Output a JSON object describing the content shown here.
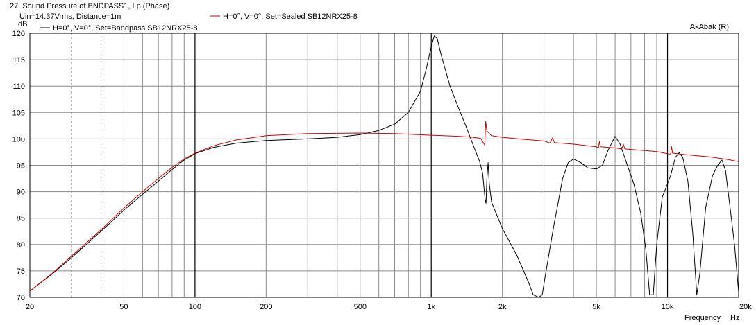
{
  "chart_data": {
    "type": "line",
    "title": "27. Sound Pressure of BNDPASS1, Lp (Phase)",
    "subtitle": "Uin=14.37Vrms, Distance=1m",
    "watermark": "AkAbak (R)",
    "ylabel": "dB",
    "xlabel": "Frequency",
    "xunit": "Hz",
    "xscale": "log",
    "xlim": [
      20,
      20000
    ],
    "ylim": [
      70,
      120
    ],
    "grid": true,
    "legend_position": "top-left",
    "x_ticks": [
      "20",
      "50",
      "100",
      "200",
      "500",
      "1k",
      "2k",
      "5k",
      "10k",
      "20k"
    ],
    "x_tick_values": [
      20,
      50,
      100,
      200,
      500,
      1000,
      2000,
      5000,
      10000,
      20000
    ],
    "y_ticks": [
      "70",
      "75",
      "80",
      "85",
      "90",
      "95",
      "100",
      "105",
      "110",
      "115",
      "120"
    ],
    "y_tick_values": [
      70,
      75,
      80,
      85,
      90,
      95,
      100,
      105,
      110,
      115,
      120
    ],
    "series": [
      {
        "name": "H=0°, V=0°, Set=Bandpass SB12NRX25-8",
        "color": "#000000",
        "points": [
          [
            20,
            71.2
          ],
          [
            25,
            74.5
          ],
          [
            30,
            77.5
          ],
          [
            40,
            82.5
          ],
          [
            50,
            86.5
          ],
          [
            60,
            89.5
          ],
          [
            70,
            92.0
          ],
          [
            80,
            94.2
          ],
          [
            90,
            96.0
          ],
          [
            100,
            97.2
          ],
          [
            120,
            98.4
          ],
          [
            150,
            99.2
          ],
          [
            200,
            99.7
          ],
          [
            300,
            100.0
          ],
          [
            400,
            100.3
          ],
          [
            500,
            100.8
          ],
          [
            600,
            101.6
          ],
          [
            700,
            102.8
          ],
          [
            800,
            105.0
          ],
          [
            900,
            109.0
          ],
          [
            950,
            113.0
          ],
          [
            1000,
            117.5
          ],
          [
            1030,
            119.5
          ],
          [
            1060,
            119.0
          ],
          [
            1100,
            116.0
          ],
          [
            1200,
            110.0
          ],
          [
            1300,
            106.0
          ],
          [
            1400,
            102.5
          ],
          [
            1500,
            99.0
          ],
          [
            1600,
            95.8
          ],
          [
            1650,
            93.5
          ],
          [
            1690,
            88.5
          ],
          [
            1705,
            87.8
          ],
          [
            1720,
            92.5
          ],
          [
            1740,
            95.5
          ],
          [
            1760,
            91.5
          ],
          [
            1800,
            88.0
          ],
          [
            2000,
            83.0
          ],
          [
            2300,
            78.0
          ],
          [
            2600,
            72.5
          ],
          [
            2700,
            70.5
          ],
          [
            2850,
            70.0
          ],
          [
            2950,
            70.5
          ],
          [
            3050,
            74.5
          ],
          [
            3300,
            83.5
          ],
          [
            3600,
            92.5
          ],
          [
            3800,
            95.5
          ],
          [
            4000,
            96.2
          ],
          [
            4300,
            95.5
          ],
          [
            4600,
            94.5
          ],
          [
            5000,
            94.3
          ],
          [
            5300,
            95.0
          ],
          [
            5600,
            97.8
          ],
          [
            6000,
            100.5
          ],
          [
            6300,
            99.0
          ],
          [
            6700,
            95.5
          ],
          [
            7200,
            91.5
          ],
          [
            7700,
            86.0
          ],
          [
            8100,
            79.0
          ],
          [
            8400,
            70.5
          ],
          [
            8700,
            70.5
          ],
          [
            9000,
            80.0
          ],
          [
            9500,
            89.0
          ],
          [
            9900,
            91.0
          ],
          [
            10300,
            93.0
          ],
          [
            10800,
            96.5
          ],
          [
            11200,
            97.4
          ],
          [
            11600,
            96.5
          ],
          [
            12200,
            92.0
          ],
          [
            12800,
            82.0
          ],
          [
            13300,
            70.5
          ],
          [
            13700,
            74.5
          ],
          [
            14500,
            87.0
          ],
          [
            15500,
            93.0
          ],
          [
            16300,
            95.0
          ],
          [
            17000,
            96.0
          ],
          [
            17600,
            94.0
          ],
          [
            18400,
            87.0
          ],
          [
            19200,
            80.0
          ],
          [
            20000,
            71.0
          ]
        ]
      },
      {
        "name": "H=0°, V=0°, Set=Sealed SB12NRX25-8",
        "color": "#cc0000",
        "points": [
          [
            20,
            71.2
          ],
          [
            25,
            74.6
          ],
          [
            30,
            77.8
          ],
          [
            40,
            82.8
          ],
          [
            50,
            86.9
          ],
          [
            60,
            90.0
          ],
          [
            70,
            92.5
          ],
          [
            80,
            94.6
          ],
          [
            90,
            96.2
          ],
          [
            100,
            97.3
          ],
          [
            120,
            98.7
          ],
          [
            150,
            99.8
          ],
          [
            200,
            100.6
          ],
          [
            300,
            101.0
          ],
          [
            500,
            101.1
          ],
          [
            700,
            101.0
          ],
          [
            1000,
            100.7
          ],
          [
            1300,
            100.5
          ],
          [
            1500,
            100.3
          ],
          [
            1620,
            100.1
          ],
          [
            1660,
            99.3
          ],
          [
            1685,
            98.8
          ],
          [
            1700,
            103.3
          ],
          [
            1720,
            101.5
          ],
          [
            1800,
            100.6
          ],
          [
            2000,
            100.3
          ],
          [
            2500,
            99.9
          ],
          [
            3000,
            99.6
          ],
          [
            3180,
            99.2
          ],
          [
            3260,
            100.2
          ],
          [
            3320,
            99.3
          ],
          [
            4000,
            99.0
          ],
          [
            5000,
            98.5
          ],
          [
            5100,
            98.3
          ],
          [
            5150,
            99.5
          ],
          [
            5200,
            98.5
          ],
          [
            6000,
            98.3
          ],
          [
            6400,
            98.1
          ],
          [
            6500,
            99.0
          ],
          [
            6600,
            98.1
          ],
          [
            8000,
            97.8
          ],
          [
            9000,
            97.6
          ],
          [
            10000,
            97.2
          ],
          [
            10300,
            97.0
          ],
          [
            10400,
            98.6
          ],
          [
            10500,
            97.3
          ],
          [
            12000,
            97.0
          ],
          [
            15000,
            96.6
          ],
          [
            18000,
            96.1
          ],
          [
            20000,
            95.7
          ]
        ]
      }
    ]
  }
}
